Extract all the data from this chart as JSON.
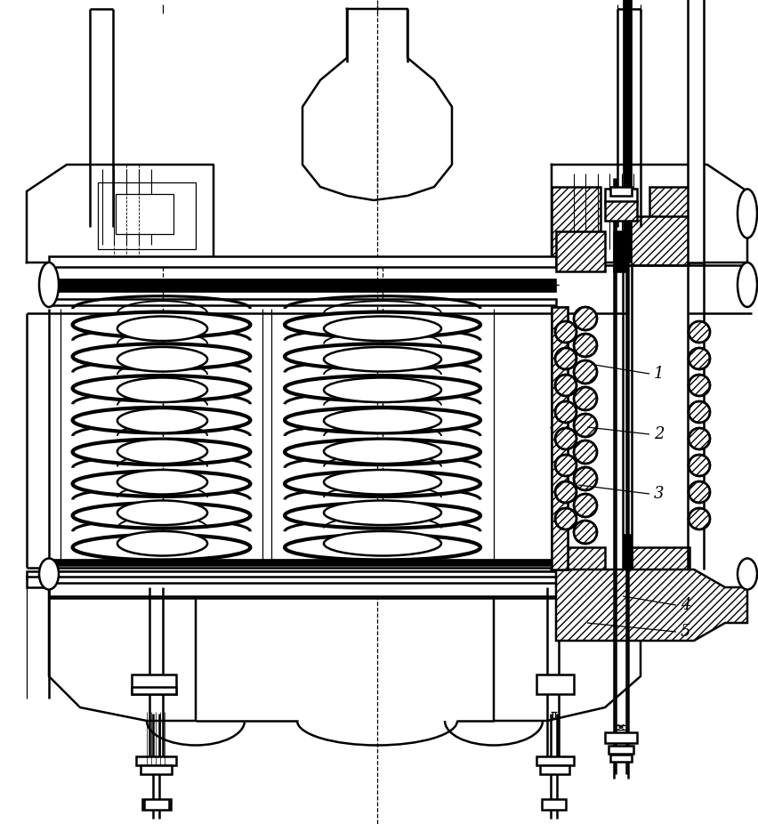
{
  "bg_color": "#ffffff",
  "line_color": "#000000",
  "figsize": [
    8.52,
    9.26
  ],
  "dpi": 100,
  "labels": [
    "1",
    "2",
    "3",
    "4",
    "5"
  ],
  "label_fontsize": 13,
  "lw_main": 1.8,
  "lw_thick": 3.0,
  "lw_thin": 0.9
}
